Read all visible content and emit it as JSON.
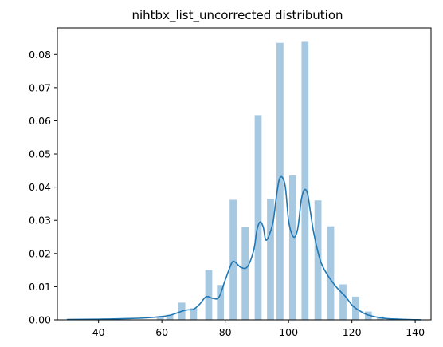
{
  "chart_data": {
    "type": "bar",
    "title": "nihtbx_list_uncorrected distribution",
    "xlabel": "",
    "ylabel": "",
    "xlim": [
      27,
      145
    ],
    "ylim": [
      0,
      0.088
    ],
    "xticks": [
      40,
      60,
      80,
      100,
      120,
      140
    ],
    "yticks": [
      0.0,
      0.01,
      0.02,
      0.03,
      0.04,
      0.05,
      0.06,
      0.07,
      0.08
    ],
    "ytick_labels": [
      "0.00",
      "0.01",
      "0.02",
      "0.03",
      "0.04",
      "0.05",
      "0.06",
      "0.07",
      "0.08"
    ],
    "grid": false,
    "legend": "none",
    "bar_color": "#a6c8e0",
    "kde_color": "#1f77b4",
    "histogram": {
      "bin_width": 2.2,
      "bars": [
        {
          "x": 59.5,
          "y": 0.001
        },
        {
          "x": 62.5,
          "y": 0.0015
        },
        {
          "x": 66.3,
          "y": 0.0052
        },
        {
          "x": 70.0,
          "y": 0.0035
        },
        {
          "x": 74.8,
          "y": 0.015
        },
        {
          "x": 78.5,
          "y": 0.0105
        },
        {
          "x": 82.5,
          "y": 0.0362
        },
        {
          "x": 86.3,
          "y": 0.028
        },
        {
          "x": 90.4,
          "y": 0.0617
        },
        {
          "x": 94.3,
          "y": 0.0365
        },
        {
          "x": 97.3,
          "y": 0.0835
        },
        {
          "x": 101.3,
          "y": 0.0435
        },
        {
          "x": 105.2,
          "y": 0.0838
        },
        {
          "x": 109.3,
          "y": 0.036
        },
        {
          "x": 113.3,
          "y": 0.0282
        },
        {
          "x": 117.2,
          "y": 0.0107
        },
        {
          "x": 121.2,
          "y": 0.007
        },
        {
          "x": 125.2,
          "y": 0.0025
        },
        {
          "x": 129.0,
          "y": 0.001
        }
      ]
    },
    "kde": {
      "x": [
        30,
        40,
        50,
        55,
        60,
        63,
        66,
        68,
        70,
        72,
        74,
        76,
        78,
        80,
        82,
        83,
        85,
        87,
        89,
        90,
        91,
        92,
        93,
        95,
        96,
        97,
        98,
        99,
        100,
        101,
        102,
        103,
        104,
        105,
        106,
        107,
        108,
        110,
        112,
        115,
        118,
        120,
        122,
        125,
        130,
        135,
        142
      ],
      "y": [
        0.0001,
        0.0002,
        0.0004,
        0.0006,
        0.001,
        0.0015,
        0.0025,
        0.003,
        0.0032,
        0.0048,
        0.007,
        0.0065,
        0.0068,
        0.012,
        0.017,
        0.0175,
        0.0158,
        0.016,
        0.021,
        0.027,
        0.0295,
        0.028,
        0.024,
        0.029,
        0.036,
        0.042,
        0.043,
        0.04,
        0.03,
        0.026,
        0.025,
        0.028,
        0.036,
        0.0392,
        0.038,
        0.032,
        0.026,
        0.018,
        0.014,
        0.01,
        0.007,
        0.0045,
        0.003,
        0.0015,
        0.0005,
        0.0002,
        0.0
      ]
    }
  }
}
